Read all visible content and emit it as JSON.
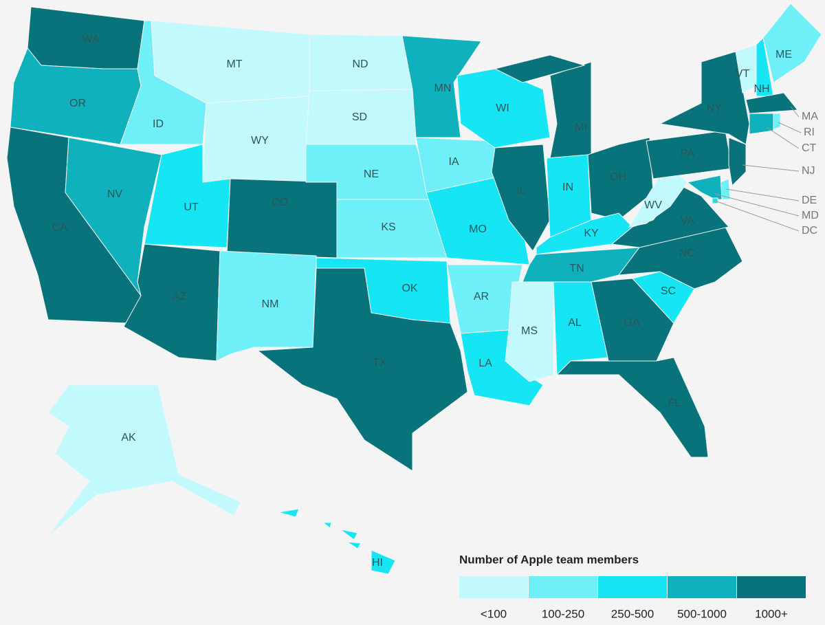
{
  "legend": {
    "title": "Number of Apple team members",
    "bins": [
      {
        "label": "<100",
        "color": "#c2f9fc"
      },
      {
        "label": "100-250",
        "color": "#6ff0f9"
      },
      {
        "label": "250-500",
        "color": "#16e5f4"
      },
      {
        "label": "500-1000",
        "color": "#0fb1bc"
      },
      {
        "label": "1000+",
        "color": "#08737a"
      }
    ]
  },
  "states": [
    {
      "label": "WA",
      "color": "#08737a"
    },
    {
      "label": "OR",
      "color": "#0fb1bc"
    },
    {
      "label": "CA",
      "color": "#08737a"
    },
    {
      "label": "ID",
      "color": "#6ff0f9"
    },
    {
      "label": "NV",
      "color": "#0fb1bc"
    },
    {
      "label": "MT",
      "color": "#c2f9fc"
    },
    {
      "label": "WY",
      "color": "#c2f9fc"
    },
    {
      "label": "UT",
      "color": "#16e5f4"
    },
    {
      "label": "AZ",
      "color": "#08737a"
    },
    {
      "label": "CO",
      "color": "#08737a"
    },
    {
      "label": "NM",
      "color": "#6ff0f9"
    },
    {
      "label": "ND",
      "color": "#c2f9fc"
    },
    {
      "label": "SD",
      "color": "#c2f9fc"
    },
    {
      "label": "NE",
      "color": "#6ff0f9"
    },
    {
      "label": "KS",
      "color": "#6ff0f9"
    },
    {
      "label": "OK",
      "color": "#16e5f4"
    },
    {
      "label": "TX",
      "color": "#08737a"
    },
    {
      "label": "MN",
      "color": "#0fb1bc"
    },
    {
      "label": "IA",
      "color": "#6ff0f9"
    },
    {
      "label": "MO",
      "color": "#16e5f4"
    },
    {
      "label": "AR",
      "color": "#6ff0f9"
    },
    {
      "label": "LA",
      "color": "#16e5f4"
    },
    {
      "label": "WI",
      "color": "#16e5f4"
    },
    {
      "label": "IL",
      "color": "#08737a"
    },
    {
      "label": "MI",
      "color": "#08737a"
    },
    {
      "label": "IN",
      "color": "#16e5f4"
    },
    {
      "label": "OH",
      "color": "#08737a"
    },
    {
      "label": "KY",
      "color": "#16e5f4"
    },
    {
      "label": "TN",
      "color": "#0fb1bc"
    },
    {
      "label": "MS",
      "color": "#c2f9fc"
    },
    {
      "label": "AL",
      "color": "#16e5f4"
    },
    {
      "label": "GA",
      "color": "#08737a"
    },
    {
      "label": "FL",
      "color": "#08737a"
    },
    {
      "label": "SC",
      "color": "#16e5f4"
    },
    {
      "label": "NC",
      "color": "#08737a"
    },
    {
      "label": "VA",
      "color": "#08737a"
    },
    {
      "label": "WV",
      "color": "#c2f9fc"
    },
    {
      "label": "PA",
      "color": "#08737a"
    },
    {
      "label": "NY",
      "color": "#08737a"
    },
    {
      "label": "VT",
      "color": "#c2f9fc"
    },
    {
      "label": "NH",
      "color": "#16e5f4"
    },
    {
      "label": "ME",
      "color": "#6ff0f9"
    },
    {
      "label": "MA",
      "color": "#08737a"
    },
    {
      "label": "CT",
      "color": "#0fb1bc"
    },
    {
      "label": "RI",
      "color": "#6ff0f9"
    },
    {
      "label": "NJ",
      "color": "#08737a"
    },
    {
      "label": "DE",
      "color": "#6ff0f9"
    },
    {
      "label": "MD",
      "color": "#0fb1bc"
    },
    {
      "label": "DC",
      "color": "#16e5f4"
    },
    {
      "label": "AK",
      "color": "#c2f9fc"
    },
    {
      "label": "HI",
      "color": "#16e5f4"
    }
  ]
}
